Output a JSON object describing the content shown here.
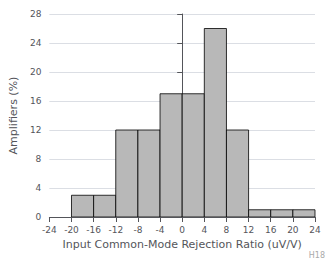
{
  "chart_data": {
    "type": "histogram",
    "bins": [
      -24,
      -20,
      -16,
      -12,
      -8,
      -4,
      0,
      4,
      8,
      12,
      16,
      20,
      24
    ],
    "values": [
      0,
      3,
      3,
      12,
      12,
      17,
      17,
      26,
      12,
      1,
      1,
      1
    ],
    "color": "#b8b8b8",
    "xlabel": "Input Common-Mode Rejection Ratio (uV/V)",
    "ylabel": "Amplifiers (%)",
    "xlim": [
      -24,
      24
    ],
    "ylim": [
      0,
      28
    ],
    "xticks": [
      -24,
      -20,
      -16,
      -12,
      -8,
      -4,
      0,
      4,
      8,
      12,
      16,
      20,
      24
    ],
    "yticks": [
      0,
      4,
      8,
      12,
      16,
      20,
      24,
      28
    ],
    "grid": true,
    "annotations": [
      "H18"
    ]
  }
}
